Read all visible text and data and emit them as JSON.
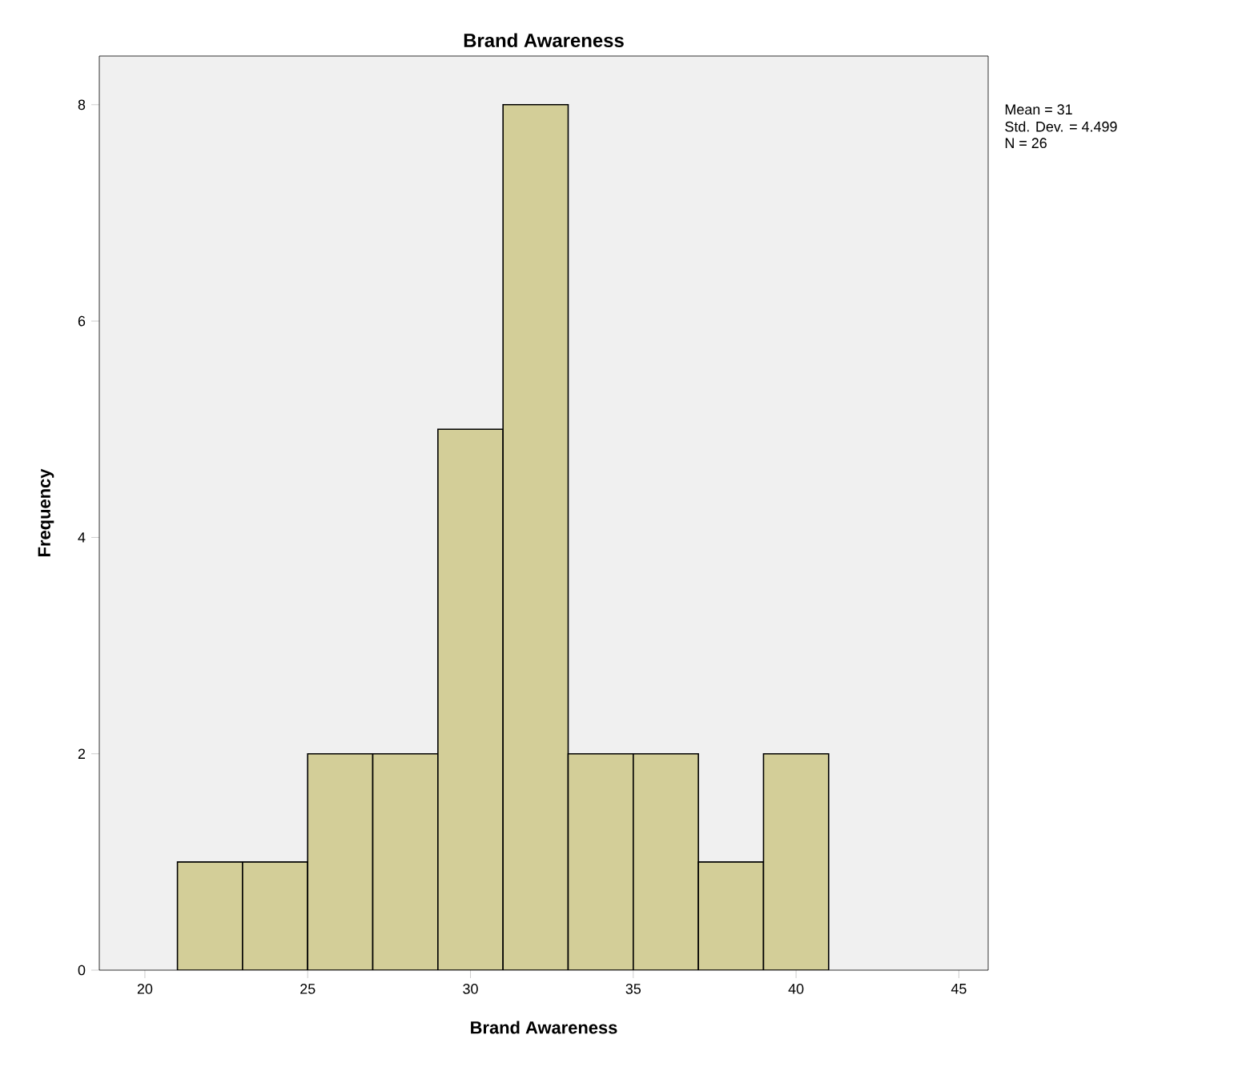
{
  "chart_data": {
    "type": "histogram",
    "title": "Brand Awareness",
    "xlabel": "Brand Awareness",
    "ylabel": "Frequency",
    "bins": [
      21,
      23,
      25,
      27,
      29,
      31,
      33,
      35,
      37,
      39,
      41
    ],
    "values": [
      1,
      1,
      2,
      2,
      5,
      8,
      2,
      2,
      1,
      2
    ],
    "color": "#d3ce98",
    "xlim": [
      18.6,
      45.9
    ],
    "ylim": [
      0,
      8.45
    ],
    "xticks": [
      20,
      25,
      30,
      35,
      40,
      45
    ],
    "yticks": [
      0,
      2,
      4,
      6,
      8
    ],
    "annotations": [
      "Mean = 31",
      "Std. Dev. = 4.499",
      "N = 26"
    ]
  }
}
